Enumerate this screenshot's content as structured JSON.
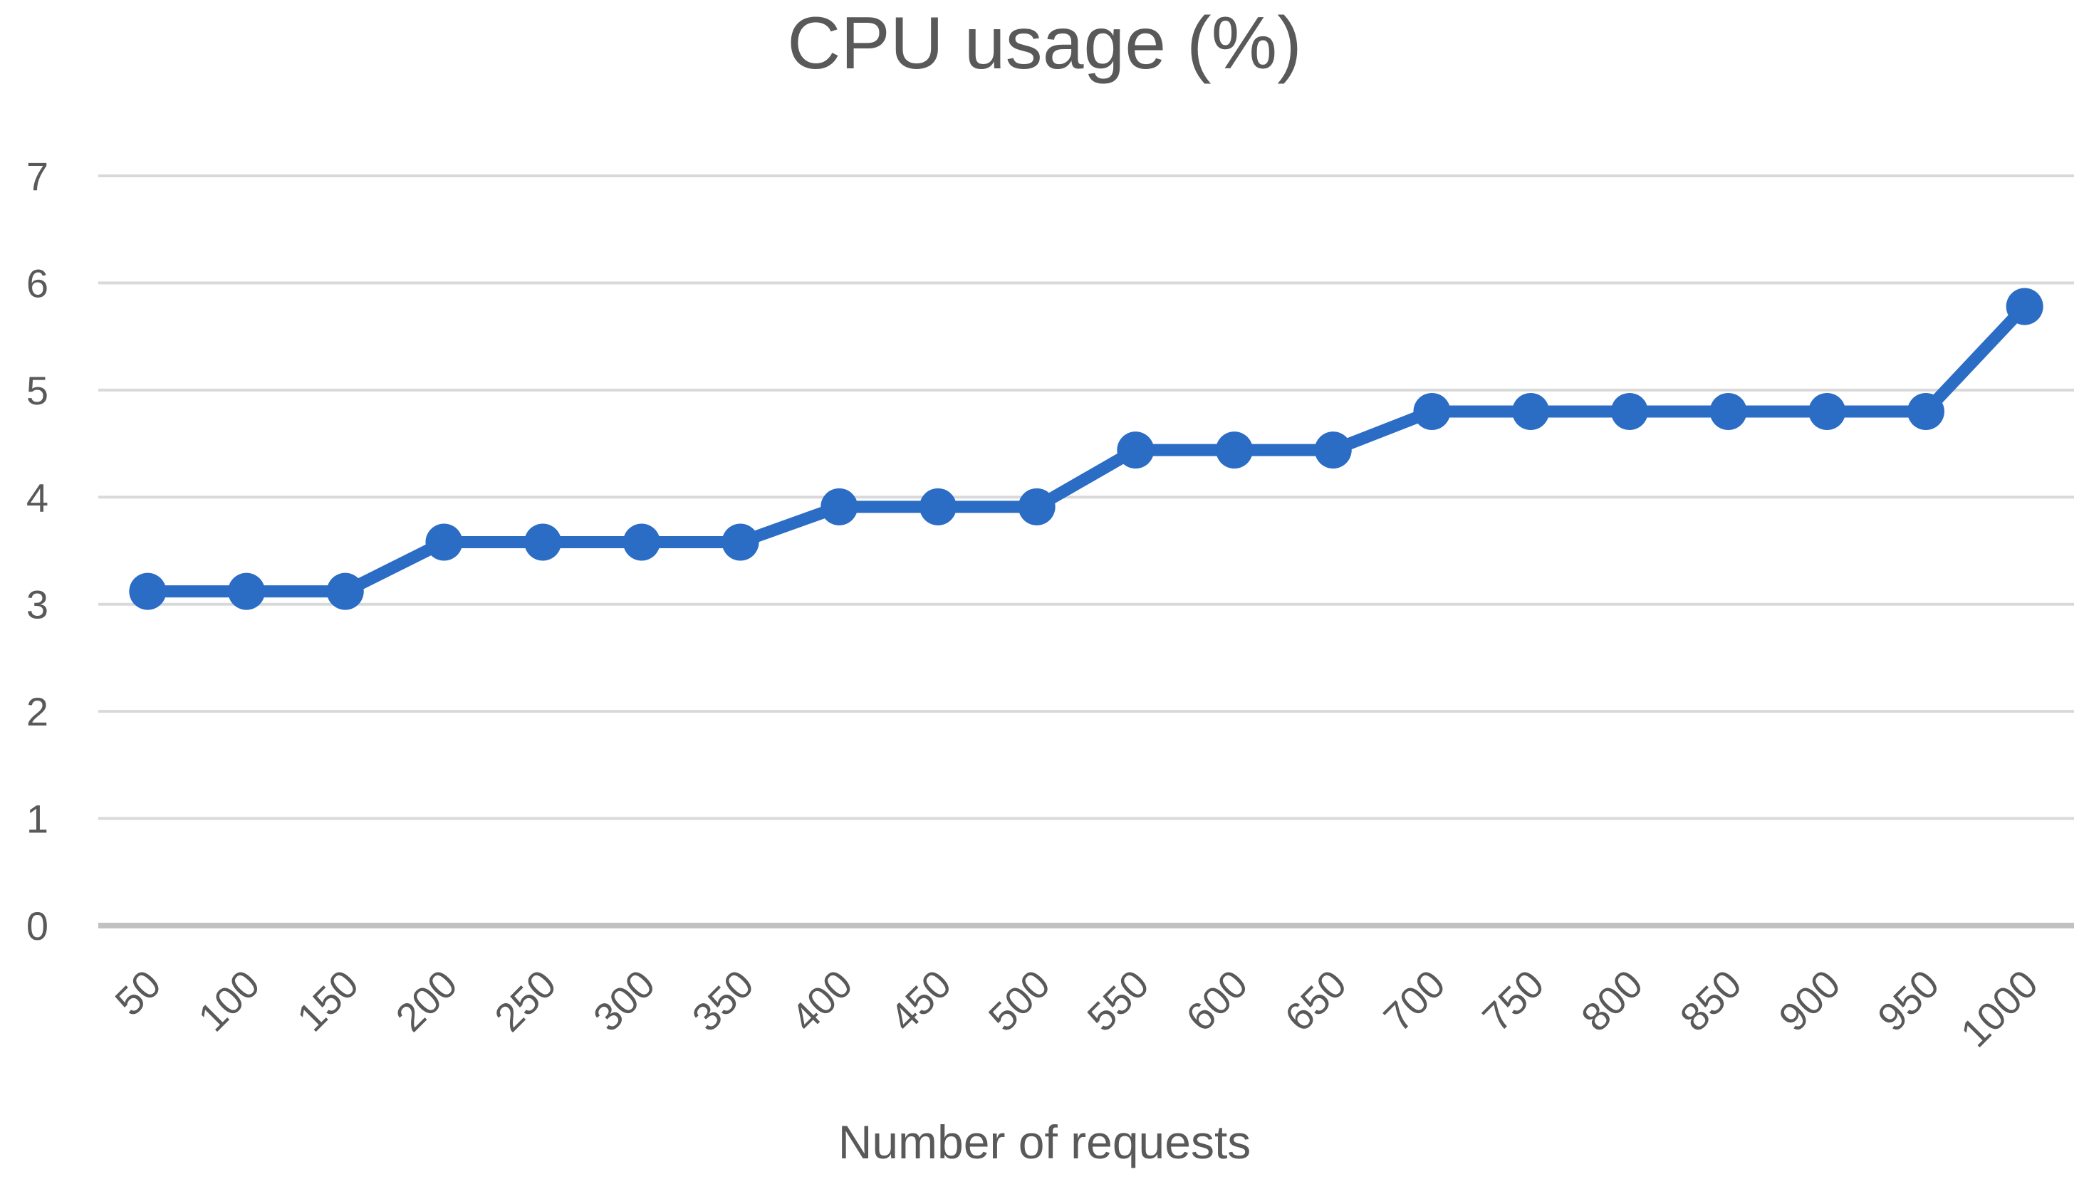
{
  "chart_data": {
    "type": "line",
    "title": "CPU usage (%)",
    "xlabel": "Number of requests",
    "ylabel": "",
    "categories": [
      50,
      100,
      150,
      200,
      250,
      300,
      350,
      400,
      450,
      500,
      550,
      600,
      650,
      700,
      750,
      800,
      850,
      900,
      950,
      1000
    ],
    "values": [
      3.12,
      3.12,
      3.12,
      3.58,
      3.58,
      3.58,
      3.58,
      3.91,
      3.91,
      3.91,
      4.44,
      4.44,
      4.44,
      4.8,
      4.8,
      4.8,
      4.8,
      4.8,
      4.8,
      5.78
    ],
    "yticks": [
      0,
      1,
      2,
      3,
      4,
      5,
      6,
      7
    ],
    "ylim": [
      0,
      7
    ],
    "grid": "horizontal",
    "legend": "none",
    "marker": "circle",
    "colors": {
      "line": "#2b6cc4",
      "marker": "#2b6cc4",
      "gridline": "#d9d9d9",
      "axis_line": "#c1c1c1",
      "text": "#595959"
    }
  }
}
